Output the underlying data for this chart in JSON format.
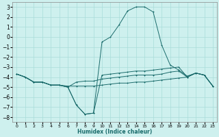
{
  "xlabel": "Humidex (Indice chaleur)",
  "bg_color": "#cef0ee",
  "grid_color": "#a8ddd9",
  "line_color": "#1a6b6b",
  "xlim": [
    -0.5,
    23.5
  ],
  "ylim": [
    -8.5,
    3.5
  ],
  "yticks": [
    -8,
    -7,
    -6,
    -5,
    -4,
    -3,
    -2,
    -1,
    0,
    1,
    2,
    3
  ],
  "xticks": [
    0,
    1,
    2,
    3,
    4,
    5,
    6,
    7,
    8,
    9,
    10,
    11,
    12,
    13,
    14,
    15,
    16,
    17,
    18,
    19,
    20,
    21,
    22,
    23
  ],
  "line1_x": [
    0,
    1,
    2,
    3,
    4,
    5,
    6,
    7,
    8,
    9,
    10,
    11,
    12,
    13,
    14,
    15,
    16,
    17,
    18,
    19,
    20,
    21,
    22,
    23
  ],
  "line1_y": [
    -3.7,
    -4.0,
    -4.5,
    -4.5,
    -4.8,
    -4.8,
    -5.0,
    -6.8,
    -7.7,
    -7.6,
    -0.5,
    0.0,
    1.2,
    2.6,
    3.0,
    3.0,
    2.5,
    -0.8,
    -2.8,
    -3.3,
    -3.9,
    -3.6,
    -3.8,
    -4.9
  ],
  "line2_x": [
    0,
    1,
    2,
    3,
    4,
    5,
    6,
    7,
    8,
    9,
    10,
    11,
    12,
    13,
    14,
    15,
    16,
    17,
    18,
    19,
    20,
    21,
    22,
    23
  ],
  "line2_y": [
    -3.7,
    -4.0,
    -4.5,
    -4.5,
    -4.8,
    -4.8,
    -5.0,
    -6.8,
    -7.7,
    -7.6,
    -3.8,
    -3.7,
    -3.6,
    -3.5,
    -3.4,
    -3.4,
    -3.3,
    -3.2,
    -3.1,
    -3.0,
    -4.0,
    -3.6,
    -3.8,
    -4.9
  ],
  "line3_x": [
    0,
    1,
    2,
    3,
    4,
    5,
    6,
    7,
    8,
    9,
    10,
    11,
    12,
    13,
    14,
    15,
    16,
    17,
    18,
    19,
    20,
    21,
    22,
    23
  ],
  "line3_y": [
    -3.7,
    -4.0,
    -4.5,
    -4.5,
    -4.8,
    -4.8,
    -5.0,
    -4.5,
    -4.4,
    -4.4,
    -4.2,
    -4.1,
    -4.0,
    -3.9,
    -3.8,
    -3.8,
    -3.8,
    -3.7,
    -3.5,
    -3.4,
    -4.0,
    -3.6,
    -3.8,
    -4.9
  ],
  "line4_x": [
    0,
    1,
    2,
    3,
    4,
    5,
    6,
    7,
    8,
    9,
    10,
    11,
    12,
    13,
    14,
    15,
    16,
    17,
    18,
    19,
    20,
    21,
    22,
    23
  ],
  "line4_y": [
    -3.7,
    -4.0,
    -4.5,
    -4.5,
    -4.8,
    -4.8,
    -4.9,
    -4.9,
    -4.9,
    -4.9,
    -4.8,
    -4.7,
    -4.6,
    -4.6,
    -4.5,
    -4.5,
    -4.4,
    -4.3,
    -4.2,
    -4.1,
    -4.0,
    -3.6,
    -3.8,
    -4.9
  ]
}
